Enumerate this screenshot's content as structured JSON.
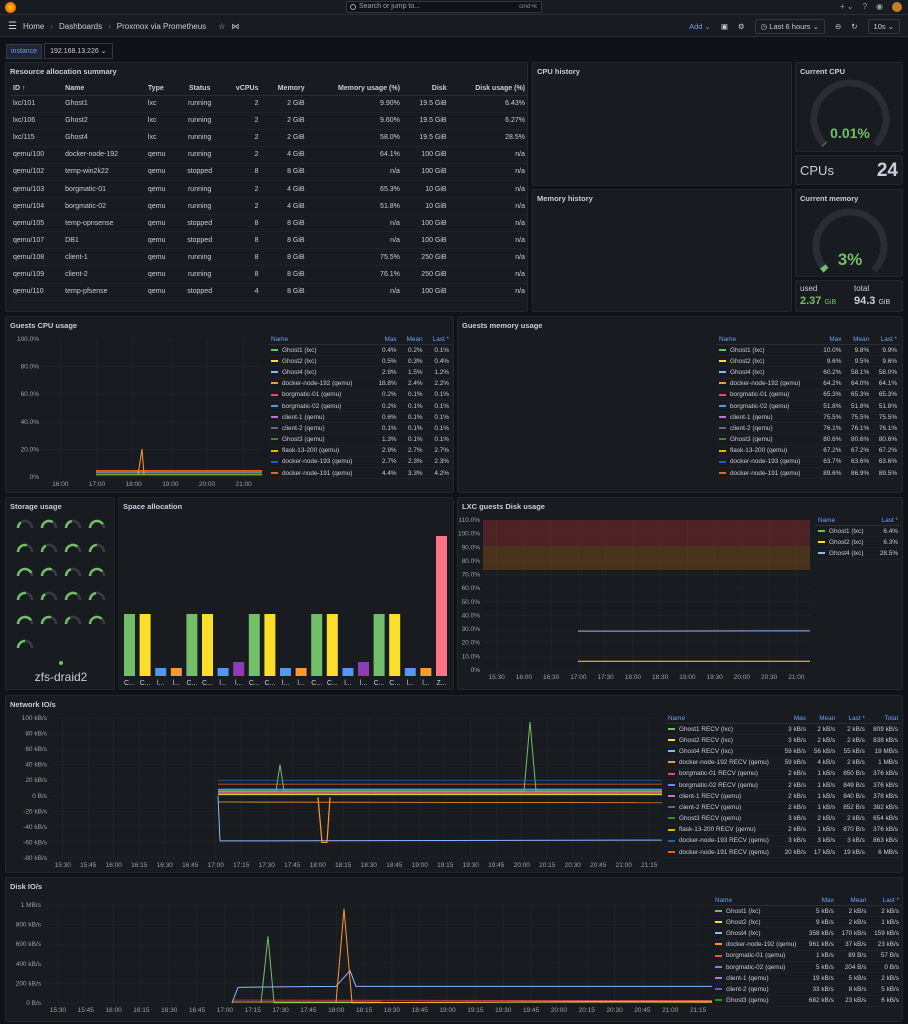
{
  "topbar": {
    "search_placeholder": "Search or jump to...",
    "shortcut": "cmd+k",
    "plus": "+ ⌄"
  },
  "nav": {
    "home": "Home",
    "dashboards": "Dashboards",
    "current": "Proxmox via Prometheus",
    "add": "Add ⌄",
    "time_range": "Last 6 hours ⌄",
    "refresh": "10s ⌄"
  },
  "variable": {
    "label": "instance",
    "value": "192.168.13.226 ⌄"
  },
  "resource_panel": {
    "title": "Resource allocation summary",
    "headers": [
      "ID ↑",
      "Name",
      "Type",
      "Status",
      "vCPUs",
      "Memory",
      "Memory usage (%)",
      "Disk",
      "Disk usage (%)"
    ],
    "rows": [
      [
        "lxc/101",
        "Ghost1",
        "lxc",
        "running",
        "2",
        "2 GiB",
        "9.90%",
        "19.5 GiB",
        "6.43%"
      ],
      [
        "lxc/106",
        "Ghost2",
        "lxc",
        "running",
        "2",
        "2 GiB",
        "9.60%",
        "19.5 GiB",
        "6.27%"
      ],
      [
        "lxc/115",
        "Ghost4",
        "lxc",
        "running",
        "2",
        "2 GiB",
        "58.0%",
        "19.5 GiB",
        "28.5%"
      ],
      [
        "qemu/100",
        "docker-node-192",
        "qemu",
        "running",
        "2",
        "4 GiB",
        "64.1%",
        "100 GiB",
        "n/a"
      ],
      [
        "qemu/102",
        "temp-win2k22",
        "qemu",
        "stopped",
        "8",
        "8 GiB",
        "n/a",
        "100 GiB",
        "n/a"
      ],
      [
        "qemu/103",
        "borgmatic-01",
        "qemu",
        "running",
        "2",
        "4 GiB",
        "65.3%",
        "10 GiB",
        "n/a"
      ],
      [
        "qemu/104",
        "borgmatic-02",
        "qemu",
        "running",
        "2",
        "4 GiB",
        "51.8%",
        "10 GiB",
        "n/a"
      ],
      [
        "qemu/105",
        "temp-opnsense",
        "qemu",
        "stopped",
        "8",
        "8 GiB",
        "n/a",
        "100 GiB",
        "n/a"
      ],
      [
        "qemu/107",
        "DB1",
        "qemu",
        "stopped",
        "8",
        "8 GiB",
        "n/a",
        "100 GiB",
        "n/a"
      ],
      [
        "qemu/108",
        "client-1",
        "qemu",
        "running",
        "8",
        "8 GiB",
        "75.5%",
        "250 GiB",
        "n/a"
      ],
      [
        "qemu/109",
        "client-2",
        "qemu",
        "running",
        "8",
        "8 GiB",
        "76.1%",
        "250 GiB",
        "n/a"
      ],
      [
        "qemu/110",
        "temp-pfsense",
        "qemu",
        "stopped",
        "4",
        "8 GiB",
        "n/a",
        "100 GiB",
        "n/a"
      ]
    ]
  },
  "cpu_history": {
    "title": "CPU history",
    "yticks": [
      "20",
      "15",
      "10",
      "5",
      "0"
    ],
    "xticks": [
      "16:00",
      "17:00",
      "18:00",
      "19:00",
      "20:00",
      "21:00"
    ]
  },
  "memory_history": {
    "title": "Memory history",
    "yticks": [
      "80 GiB",
      "64 GiB",
      "48 GiB",
      "32 GiB",
      "16 GiB",
      "0 B"
    ],
    "xticks": [
      "16:00",
      "17:00",
      "18:00",
      "19:00",
      "20:00",
      "21:00"
    ]
  },
  "current_cpu": {
    "title": "Current CPU",
    "value": "0.01%",
    "fraction": 0.0001
  },
  "cpus": {
    "label": "CPUs",
    "value": "24"
  },
  "current_memory": {
    "title": "Current memory",
    "value": "3%",
    "fraction": 0.03
  },
  "mem_stats": {
    "used_label": "used",
    "used_value": "2.37",
    "used_unit": "GiB",
    "total_label": "total",
    "total_value": "94.3",
    "total_unit": "GiB"
  },
  "guests_cpu": {
    "title": "Guests CPU usage",
    "yticks": [
      "100.0%",
      "80.0%",
      "60.0%",
      "40.0%",
      "20.0%",
      "0%"
    ],
    "xticks": [
      "16:00",
      "17:00",
      "18:00",
      "19:00",
      "20:00",
      "21:00"
    ],
    "headers": [
      "Name",
      "Max",
      "Mean",
      "Last *"
    ],
    "rows": [
      {
        "name": "Ghost1 (lxc)",
        "color": "#73bf69",
        "max": "0.4%",
        "mean": "0.2%",
        "last": "0.1%"
      },
      {
        "name": "Ghost2 (lxc)",
        "color": "#fade2a",
        "max": "0.5%",
        "mean": "0.3%",
        "last": "0.4%"
      },
      {
        "name": "Ghost4 (lxc)",
        "color": "#8ab8ff",
        "max": "2.9%",
        "mean": "1.5%",
        "last": "1.2%"
      },
      {
        "name": "docker-node-192 (qemu)",
        "color": "#ff9830",
        "max": "18.8%",
        "mean": "2.4%",
        "last": "2.2%"
      },
      {
        "name": "borgmatic-01 (qemu)",
        "color": "#f2495c",
        "max": "0.2%",
        "mean": "0.1%",
        "last": "0.1%"
      },
      {
        "name": "borgmatic-02 (qemu)",
        "color": "#5794f2",
        "max": "0.2%",
        "mean": "0.1%",
        "last": "0.1%"
      },
      {
        "name": "client-1 (qemu)",
        "color": "#b877d9",
        "max": "0.6%",
        "mean": "0.1%",
        "last": "0.1%"
      },
      {
        "name": "client-2 (qemu)",
        "color": "#705da0",
        "max": "0.1%",
        "mean": "0.1%",
        "last": "0.1%"
      },
      {
        "name": "Ghost3 (qemu)",
        "color": "#37872d",
        "max": "1.3%",
        "mean": "0.1%",
        "last": "0.1%"
      },
      {
        "name": "flask-13-200 (qemu)",
        "color": "#e0b400",
        "max": "2.9%",
        "mean": "2.7%",
        "last": "2.7%"
      },
      {
        "name": "docker-node-193 (qemu)",
        "color": "#1f60c4",
        "max": "2.7%",
        "mean": "2.3%",
        "last": "2.3%"
      },
      {
        "name": "docker-node-191 (qemu)",
        "color": "#fa6400",
        "max": "4.4%",
        "mean": "3.3%",
        "last": "4.2%"
      }
    ]
  },
  "guests_mem": {
    "title": "Guests memory usage",
    "yticks": [
      "100.0%",
      "80.0%",
      "60.0%",
      "40.0%",
      "20.0%"
    ],
    "xticks": [
      "16:00",
      "17:00",
      "18:00",
      "19:00",
      "20:00",
      "21:00"
    ],
    "headers": [
      "Name",
      "Max",
      "Mean",
      "Last *"
    ],
    "rows": [
      {
        "name": "Ghost1 (lxc)",
        "color": "#73bf69",
        "max": "10.0%",
        "mean": "9.8%",
        "last": "9.9%"
      },
      {
        "name": "Ghost2 (lxc)",
        "color": "#fade2a",
        "max": "9.6%",
        "mean": "9.5%",
        "last": "9.6%"
      },
      {
        "name": "Ghost4 (lxc)",
        "color": "#8ab8ff",
        "max": "60.2%",
        "mean": "58.1%",
        "last": "58.0%"
      },
      {
        "name": "docker-node-192 (qemu)",
        "color": "#ff9830",
        "max": "64.2%",
        "mean": "64.0%",
        "last": "64.1%"
      },
      {
        "name": "borgmatic-01 (qemu)",
        "color": "#f2495c",
        "max": "65.3%",
        "mean": "65.3%",
        "last": "65.3%"
      },
      {
        "name": "borgmatic-02 (qemu)",
        "color": "#5794f2",
        "max": "51.8%",
        "mean": "51.8%",
        "last": "51.8%"
      },
      {
        "name": "client-1 (qemu)",
        "color": "#b877d9",
        "max": "75.5%",
        "mean": "75.5%",
        "last": "75.5%"
      },
      {
        "name": "client-2 (qemu)",
        "color": "#705da0",
        "max": "76.1%",
        "mean": "76.1%",
        "last": "76.1%"
      },
      {
        "name": "Ghost3 (qemu)",
        "color": "#37872d",
        "max": "80.6%",
        "mean": "80.6%",
        "last": "80.6%"
      },
      {
        "name": "flask-13-200 (qemu)",
        "color": "#e0b400",
        "max": "67.2%",
        "mean": "67.2%",
        "last": "67.2%"
      },
      {
        "name": "docker-node-193 (qemu)",
        "color": "#1f60c4",
        "max": "63.7%",
        "mean": "63.6%",
        "last": "63.6%"
      },
      {
        "name": "docker-node-191 (qemu)",
        "color": "#fa6400",
        "max": "89.6%",
        "mean": "86.9%",
        "last": "89.5%"
      }
    ]
  },
  "storage": {
    "title": "Storage usage",
    "label": "zfs-draid2"
  },
  "space": {
    "title": "Space allocation",
    "labels": [
      "C...",
      "C...",
      "l...",
      "l...",
      "C...",
      "C...",
      "l...",
      "l...",
      "C...",
      "C...",
      "l...",
      "l...",
      "C...",
      "C...",
      "l...",
      "l...",
      "C...",
      "C...",
      "l...",
      "l...",
      "Z..."
    ]
  },
  "lxc_disk": {
    "title": "LXC guests Disk usage",
    "yticks": [
      "110.0%",
      "100.0%",
      "90.0%",
      "80.0%",
      "70.0%",
      "60.0%",
      "50.0%",
      "40.0%",
      "30.0%",
      "20.0%",
      "10.0%",
      "0%"
    ],
    "xticks": [
      "15:30",
      "16:00",
      "16:30",
      "17:00",
      "17:30",
      "18:00",
      "18:30",
      "19:00",
      "19:30",
      "20:00",
      "20:30",
      "21:00"
    ],
    "headers": [
      "Name",
      "Last *"
    ],
    "rows": [
      {
        "name": "Ghost1 (lxc)",
        "color": "#73bf69",
        "last": "6.4%"
      },
      {
        "name": "Ghost2 (lxc)",
        "color": "#fade2a",
        "last": "6.3%"
      },
      {
        "name": "Ghost4 (lxc)",
        "color": "#8ab8ff",
        "last": "28.5%"
      }
    ]
  },
  "network": {
    "title": "Network IO/s",
    "yticks": [
      "100 kB/s",
      "80 kB/s",
      "60 kB/s",
      "40 kB/s",
      "20 kB/s",
      "0 B/s",
      "-20 kB/s",
      "-40 kB/s",
      "-60 kB/s",
      "-80 kB/s"
    ],
    "xticks": [
      "15:30",
      "15:45",
      "16:00",
      "16:15",
      "16:30",
      "16:45",
      "17:00",
      "17:15",
      "17:30",
      "17:45",
      "18:00",
      "18:15",
      "18:30",
      "18:45",
      "19:00",
      "19:15",
      "19:30",
      "19:45",
      "20:00",
      "20:15",
      "20:30",
      "20:45",
      "21:00",
      "21:15"
    ],
    "headers": [
      "Name",
      "Max",
      "Mean",
      "Last *",
      "Total"
    ],
    "rows": [
      {
        "name": "Ghost1 RECV (lxc)",
        "color": "#73bf69",
        "max": "3 kB/s",
        "mean": "2 kB/s",
        "last": "2 kB/s",
        "total": "809 kB/s"
      },
      {
        "name": "Ghost2 RECV (lxc)",
        "color": "#fade2a",
        "max": "3 kB/s",
        "mean": "2 kB/s",
        "last": "2 kB/s",
        "total": "838 kB/s"
      },
      {
        "name": "Ghost4 RECV (lxc)",
        "color": "#8ab8ff",
        "max": "59 kB/s",
        "mean": "56 kB/s",
        "last": "55 kB/s",
        "total": "19 MB/s"
      },
      {
        "name": "docker-node-192 RECV (qemu)",
        "color": "#ff9830",
        "max": "59 kB/s",
        "mean": "4 kB/s",
        "last": "2 kB/s",
        "total": "1 MB/s"
      },
      {
        "name": "borgmatic-01 RECV (qemu)",
        "color": "#f2495c",
        "max": "2 kB/s",
        "mean": "1 kB/s",
        "last": "850 B/s",
        "total": "376 kB/s"
      },
      {
        "name": "borgmatic-02 RECV (qemu)",
        "color": "#5794f2",
        "max": "2 kB/s",
        "mean": "1 kB/s",
        "last": "849 B/s",
        "total": "376 kB/s"
      },
      {
        "name": "client-1 RECV (qemu)",
        "color": "#b877d9",
        "max": "2 kB/s",
        "mean": "1 kB/s",
        "last": "840 B/s",
        "total": "378 kB/s"
      },
      {
        "name": "client-2 RECV (qemu)",
        "color": "#705da0",
        "max": "2 kB/s",
        "mean": "1 kB/s",
        "last": "852 B/s",
        "total": "382 kB/s"
      },
      {
        "name": "Ghost3 RECV (qemu)",
        "color": "#37872d",
        "max": "3 kB/s",
        "mean": "2 kB/s",
        "last": "2 kB/s",
        "total": "654 kB/s"
      },
      {
        "name": "flask-13-200 RECV (qemu)",
        "color": "#e0b400",
        "max": "2 kB/s",
        "mean": "1 kB/s",
        "last": "870 B/s",
        "total": "376 kB/s"
      },
      {
        "name": "docker-node-193 RECV (qemu)",
        "color": "#1f60c4",
        "max": "3 kB/s",
        "mean": "3 kB/s",
        "last": "3 kB/s",
        "total": "863 kB/s"
      },
      {
        "name": "docker-node-191 RECV (qemu)",
        "color": "#fa6400",
        "max": "20 kB/s",
        "mean": "17 kB/s",
        "last": "19 kB/s",
        "total": "6 MB/s"
      }
    ]
  },
  "disk_io": {
    "title": "Disk IO/s",
    "yticks": [
      "1 MB/s",
      "800 kB/s",
      "600 kB/s",
      "400 kB/s",
      "200 kB/s",
      "0 B/s"
    ],
    "xticks": [
      "15:30",
      "15:45",
      "16:00",
      "16:15",
      "16:30",
      "16:45",
      "17:00",
      "17:15",
      "17:30",
      "17:45",
      "18:00",
      "18:15",
      "18:30",
      "18:45",
      "19:00",
      "19:15",
      "19:30",
      "19:45",
      "20:00",
      "20:15",
      "20:30",
      "20:45",
      "21:00",
      "21:15"
    ],
    "headers": [
      "Name",
      "Max",
      "Mean",
      "Last *"
    ],
    "rows": [
      {
        "name": "Ghost1 (lxc)",
        "color": "#73bf69",
        "max": "5 kB/s",
        "mean": "2 kB/s",
        "last": "2 kB/s"
      },
      {
        "name": "Ghost2 (lxc)",
        "color": "#fade2a",
        "max": "9 kB/s",
        "mean": "2 kB/s",
        "last": "1 kB/s"
      },
      {
        "name": "Ghost4 (lxc)",
        "color": "#8ab8ff",
        "max": "358 kB/s",
        "mean": "170 kB/s",
        "last": "159 kB/s"
      },
      {
        "name": "docker-node-192 (qemu)",
        "color": "#ff9830",
        "max": "961 kB/s",
        "mean": "37 kB/s",
        "last": "23 kB/s"
      },
      {
        "name": "borgmatic-01 (qemu)",
        "color": "#f2495c",
        "max": "1 kB/s",
        "mean": "89 B/s",
        "last": "57 B/s"
      },
      {
        "name": "borgmatic-02 (qemu)",
        "color": "#5794f2",
        "max": "5 kB/s",
        "mean": "204 B/s",
        "last": "0 B/s"
      },
      {
        "name": "client-1 (qemu)",
        "color": "#b877d9",
        "max": "19 kB/s",
        "mean": "5 kB/s",
        "last": "2 kB/s"
      },
      {
        "name": "client-2 (qemu)",
        "color": "#705da0",
        "max": "33 kB/s",
        "mean": "8 kB/s",
        "last": "5 kB/s"
      },
      {
        "name": "Ghost3 (qemu)",
        "color": "#37872d",
        "max": "682 kB/s",
        "mean": "23 kB/s",
        "last": "6 kB/s"
      }
    ]
  }
}
